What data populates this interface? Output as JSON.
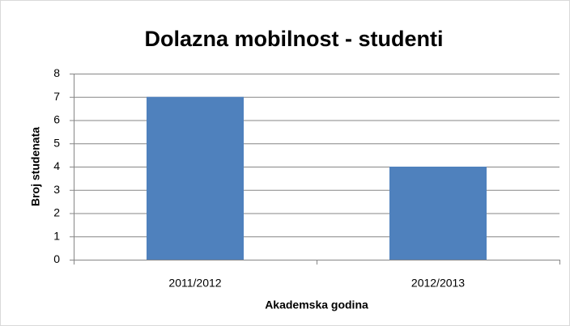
{
  "chart_data": {
    "type": "bar",
    "title": "Dolazna mobilnost - studenti",
    "categories": [
      "2011/2012",
      "2012/2013"
    ],
    "values": [
      7,
      4
    ],
    "color": "#4f81bd",
    "xlabel": "Akademska godina",
    "ylabel": "Broj studenata",
    "ylim": [
      0,
      8
    ],
    "yticks": [
      0,
      1,
      2,
      3,
      4,
      5,
      6,
      7,
      8
    ],
    "grid": true
  }
}
